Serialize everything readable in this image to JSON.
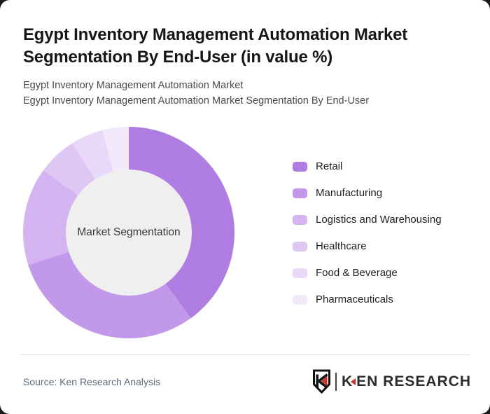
{
  "page": {
    "title": "Egypt Inventory Management Automation Market Segmentation By End-User (in value %)",
    "subtitle_line1": "Egypt Inventory Management Automation Market",
    "subtitle_line2": "Egypt Inventory Management Automation Market Segmentation By End-User"
  },
  "chart_data": {
    "type": "pie",
    "donut": true,
    "title": "Egypt Inventory Management Automation Market Segmentation By End-User (in value %)",
    "center_label": "Market Segmentation",
    "categories": [
      "Retail",
      "Manufacturing",
      "Logistics and Warehousing",
      "Healthcare",
      "Food & Beverage",
      "Pharmaceuticals"
    ],
    "values": [
      40,
      30,
      15,
      6,
      5,
      4
    ],
    "unit": "%",
    "colors": [
      "#af7de2",
      "#c198ea",
      "#d3b3f0",
      "#dfc7f4",
      "#e9d8f8",
      "#f2e9fb"
    ],
    "start_angle_deg": 0,
    "legend_position": "right",
    "hole_color": "#f0eff0"
  },
  "footer": {
    "source": "Source: Ken Research Analysis",
    "logo": {
      "badge_letter": "K",
      "wordmark_first_letter": "K",
      "wordmark_rest": "EN RESEARCH"
    }
  },
  "theme": {
    "card_background": "#ffffff",
    "page_background": "#1a1a1a",
    "accent_red": "#c4332c",
    "title_color": "#161616",
    "subtitle_color": "#4a4a4a",
    "source_color": "#5b6b7c"
  }
}
